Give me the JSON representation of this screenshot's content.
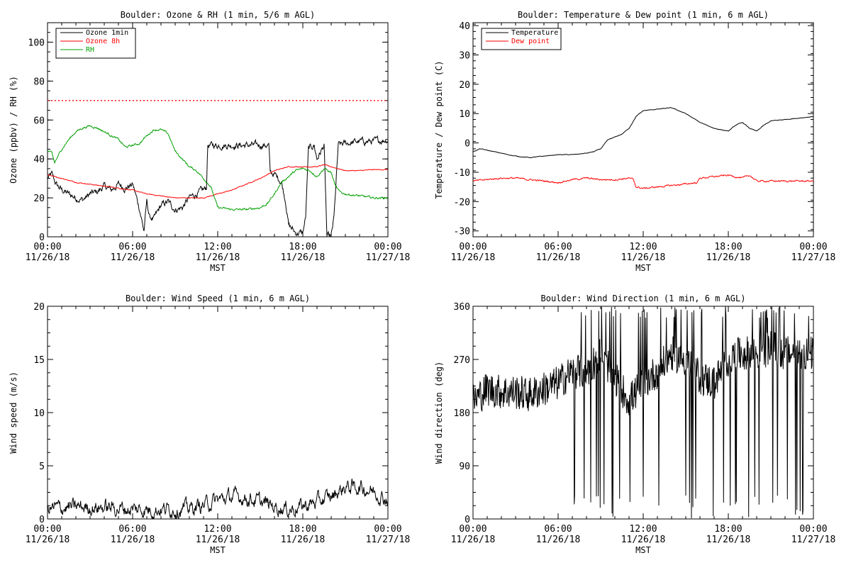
{
  "chart_data": [
    {
      "type": "line",
      "title": "Boulder: Ozone & RH (1 min, 5/6 m AGL)",
      "ylabel": "Ozone (ppbv) / RH (%)",
      "xlabel": "MST",
      "xlim": [
        0,
        24
      ],
      "ylim": [
        0,
        110
      ],
      "yticks": [
        0,
        20,
        40,
        60,
        80,
        100
      ],
      "x_tick_labels": [
        [
          "00:00",
          "11/26/18"
        ],
        [
          "06:00",
          "11/26/18"
        ],
        [
          "12:00",
          "11/26/18"
        ],
        [
          "18:00",
          "11/26/18"
        ],
        [
          "00:00",
          "11/27/18"
        ]
      ],
      "legend": {
        "placement": "top-left",
        "entries": [
          {
            "name": "Ozone 1min",
            "color": "#000000"
          },
          {
            "name": "Ozone 8h",
            "color": "#ff0000"
          },
          {
            "name": "RH",
            "color": "#00a000"
          }
        ]
      },
      "reference_lines": [
        {
          "y": 70,
          "color": "#ff0000",
          "style": "dotted"
        }
      ],
      "series": [
        {
          "name": "Ozone 1min",
          "color": "#000000",
          "noise": 2.5,
          "x": [
            0,
            0.3,
            0.6,
            1,
            1.5,
            2,
            2.5,
            3,
            3.5,
            4,
            4.5,
            5,
            5.5,
            6,
            6.2,
            6.5,
            6.8,
            7,
            7.2,
            7.5,
            8,
            8.5,
            9,
            9.5,
            10,
            10.5,
            11,
            11.2,
            11.3,
            11.6,
            12,
            13,
            14,
            15,
            15.6,
            15.7,
            16,
            16.3,
            16.5,
            16.8,
            17,
            17.5,
            18,
            18.2,
            18.4,
            18.8,
            19,
            19.5,
            19.7,
            20,
            20.2,
            20.5,
            21,
            22,
            23,
            24
          ],
          "y": [
            30,
            32,
            27,
            24,
            22,
            20,
            19,
            22,
            23,
            26,
            24,
            27,
            25,
            27,
            22,
            14,
            3,
            18,
            10,
            9,
            16,
            18,
            14,
            15,
            20,
            22,
            24,
            25,
            47,
            47,
            47,
            47,
            47,
            47,
            47,
            33,
            32,
            30,
            28,
            18,
            6,
            2,
            2,
            10,
            45,
            47,
            40,
            47,
            0,
            0,
            10,
            47,
            48,
            49,
            49,
            50
          ]
        },
        {
          "name": "Ozone 8h",
          "color": "#ff0000",
          "noise": 0.3,
          "x": [
            0,
            1,
            2,
            3,
            4,
            5,
            6,
            7,
            8,
            9,
            10,
            11,
            12,
            13,
            14,
            15,
            16,
            17,
            18,
            19,
            19.5,
            20,
            20.5,
            21,
            22,
            23,
            24
          ],
          "y": [
            32,
            30,
            28,
            27,
            26,
            25,
            24,
            22,
            21,
            20,
            20,
            20,
            22,
            24,
            27,
            30,
            34,
            36,
            36,
            36,
            37,
            36,
            35,
            34,
            34,
            34.5,
            34.5
          ]
        },
        {
          "name": "RH",
          "color": "#00a000",
          "noise": 0.8,
          "x": [
            0,
            0.3,
            0.5,
            1,
            1.5,
            2,
            2.5,
            3,
            3.5,
            4,
            4.5,
            5,
            5.5,
            6,
            6.5,
            7,
            7.5,
            8,
            8.5,
            9,
            9.5,
            10,
            10.5,
            11,
            11.5,
            12,
            13,
            14,
            15,
            15.5,
            16,
            16.5,
            17,
            17.5,
            18,
            18.5,
            19,
            19.5,
            20,
            20.3,
            20.6,
            21,
            22,
            23,
            24
          ],
          "y": [
            44,
            43,
            38,
            45,
            50,
            54,
            56,
            57,
            56,
            54,
            52,
            50,
            46,
            47,
            48,
            52,
            55,
            55,
            53,
            44,
            40,
            36,
            34,
            30,
            26,
            15,
            14,
            14,
            15,
            17,
            22,
            28,
            31,
            34,
            35,
            34,
            31,
            35,
            33,
            26,
            23,
            22,
            21,
            20,
            20
          ]
        }
      ]
    },
    {
      "type": "line",
      "title": "Boulder: Temperature & Dew point (1 min, 6 m AGL)",
      "ylabel": "Temperature / Dew point (C)",
      "xlabel": "MST",
      "xlim": [
        0,
        24
      ],
      "ylim": [
        -32,
        41
      ],
      "yticks": [
        -30,
        -20,
        -10,
        0,
        10,
        20,
        30,
        40
      ],
      "x_tick_labels": [
        [
          "00:00",
          "11/26/18"
        ],
        [
          "06:00",
          "11/26/18"
        ],
        [
          "12:00",
          "11/26/18"
        ],
        [
          "18:00",
          "11/26/18"
        ],
        [
          "00:00",
          "11/27/18"
        ]
      ],
      "legend": {
        "placement": "top-left",
        "entries": [
          {
            "name": "Temperature",
            "color": "#000000"
          },
          {
            "name": "Dew point",
            "color": "#ff0000"
          }
        ]
      },
      "series": [
        {
          "name": "Temperature",
          "color": "#000000",
          "noise": 0.15,
          "x": [
            0,
            0.5,
            1,
            2,
            3,
            4,
            5,
            6,
            7,
            8,
            8.5,
            9,
            9.5,
            10,
            10.5,
            11,
            11.5,
            12,
            13,
            14,
            15,
            16,
            17,
            18,
            18.5,
            19,
            19.5,
            20,
            20.5,
            21,
            22,
            23,
            24
          ],
          "y": [
            -3,
            -2,
            -2.5,
            -3.5,
            -4.5,
            -5,
            -4.5,
            -4,
            -4,
            -3.5,
            -3,
            -2,
            1,
            2,
            3,
            5,
            9,
            11,
            11.5,
            12,
            10,
            7,
            5,
            4,
            6,
            7,
            5,
            4,
            6,
            7.5,
            8,
            8.5,
            9
          ]
        },
        {
          "name": "Dew point",
          "color": "#ff0000",
          "noise": 0.4,
          "x": [
            0,
            1,
            2,
            3,
            4,
            5,
            6,
            7,
            8,
            9,
            10,
            11,
            11.3,
            11.5,
            12,
            13,
            14,
            15,
            15.8,
            16,
            17,
            18,
            19,
            19.5,
            20,
            21,
            22,
            23,
            24
          ],
          "y": [
            -13,
            -12.5,
            -12,
            -12,
            -12.5,
            -13,
            -13.5,
            -12.5,
            -12,
            -12.5,
            -12.5,
            -12,
            -12.5,
            -15,
            -15.5,
            -15,
            -14.5,
            -14,
            -13.5,
            -12,
            -11.5,
            -11,
            -12,
            -11,
            -13,
            -13,
            -13,
            -13,
            -13
          ]
        }
      ]
    },
    {
      "type": "line",
      "title": "Boulder: Wind Speed (1 min, 6 m AGL)",
      "ylabel": "Wind speed (m/s)",
      "xlabel": "MST",
      "xlim": [
        0,
        24
      ],
      "ylim": [
        0,
        20
      ],
      "yticks": [
        0,
        5,
        10,
        15,
        20
      ],
      "x_tick_labels": [
        [
          "00:00",
          "11/26/18"
        ],
        [
          "06:00",
          "11/26/18"
        ],
        [
          "12:00",
          "11/26/18"
        ],
        [
          "18:00",
          "11/26/18"
        ],
        [
          "00:00",
          "11/27/18"
        ]
      ],
      "series": [
        {
          "name": "",
          "color": "#000000",
          "noise": 1.0,
          "x": [
            0,
            2,
            4,
            6,
            8,
            10,
            11,
            12,
            13,
            14,
            15,
            16,
            17,
            18,
            19,
            20,
            21,
            22,
            23,
            24
          ],
          "y": [
            1,
            1.1,
            1.1,
            0.9,
            0.9,
            1,
            1.3,
            1.8,
            2.1,
            2.0,
            1.6,
            1.2,
            0.9,
            1.2,
            1.6,
            2.1,
            3.0,
            3.0,
            2.6,
            1.8
          ]
        }
      ]
    },
    {
      "type": "line",
      "title": "Boulder: Wind Direction (1 min, 6 m AGL)",
      "ylabel": "Wind direction (deg)",
      "xlabel": "MST",
      "xlim": [
        0,
        24
      ],
      "ylim": [
        0,
        360
      ],
      "yticks": [
        0,
        90,
        180,
        270,
        360
      ],
      "x_tick_labels": [
        [
          "00:00",
          "11/26/18"
        ],
        [
          "06:00",
          "11/26/18"
        ],
        [
          "12:00",
          "11/26/18"
        ],
        [
          "18:00",
          "11/26/18"
        ],
        [
          "00:00",
          "11/27/18"
        ]
      ],
      "series": [
        {
          "name": "",
          "color": "#000000",
          "noise": 60,
          "x": [
            0,
            1,
            2,
            3,
            4,
            5,
            6,
            7,
            8,
            9,
            10,
            11,
            12,
            13,
            14,
            15,
            16,
            17,
            18,
            19,
            20,
            21,
            22,
            23,
            24
          ],
          "y": [
            200,
            220,
            215,
            215,
            210,
            220,
            230,
            250,
            250,
            280,
            240,
            200,
            230,
            250,
            280,
            270,
            240,
            230,
            270,
            280,
            280,
            290,
            280,
            280,
            280
          ]
        }
      ]
    }
  ]
}
